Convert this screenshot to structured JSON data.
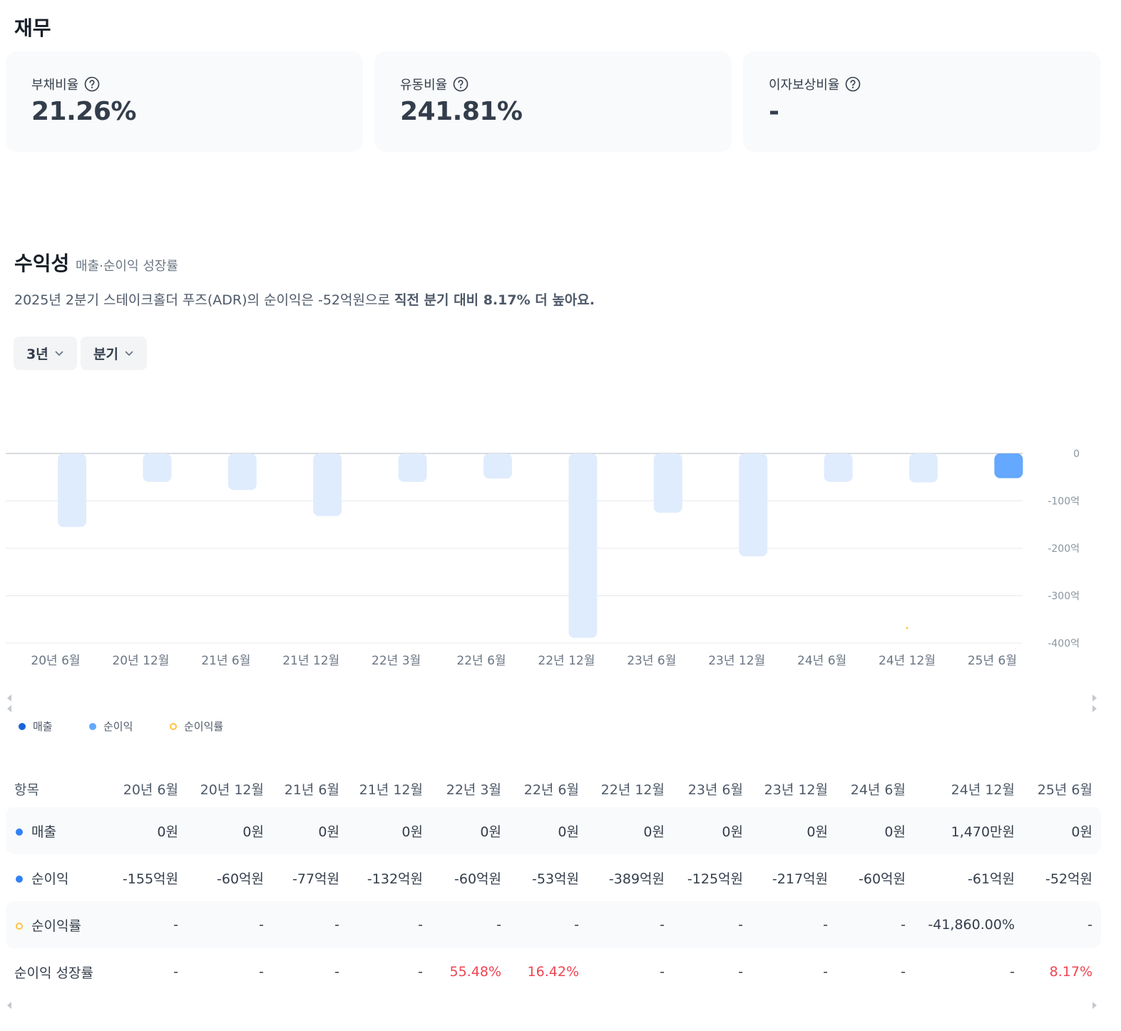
{
  "header": {
    "title": "재무"
  },
  "metrics": [
    {
      "label": "부채비율",
      "value": "21.26%"
    },
    {
      "label": "유동비율",
      "value": "241.81%"
    },
    {
      "label": "이자보상비율",
      "value": "-"
    }
  ],
  "profitability": {
    "title": "수익성",
    "subtitle": "매출·순이익 성장률",
    "summary": "2025년 2분기 스테이크홀더 푸즈(ADR)의 순이익은 -52억원으로 ",
    "summary_emphasis": "직전 분기 대비 8.17% 더 높아요."
  },
  "filters": [
    "3년",
    "분기"
  ],
  "chart_data": {
    "type": "bar",
    "categories": [
      "20년 6월",
      "20년 12월",
      "21년 6월",
      "21년 12월",
      "22년 3월",
      "22년 6월",
      "22년 12월",
      "23년 6월",
      "23년 12월",
      "24년 6월",
      "24년 12월",
      "25년 6월"
    ],
    "series": [
      {
        "name": "매출",
        "color": "#1b64da",
        "values": [
          0,
          0,
          0,
          0,
          0,
          0,
          0,
          0,
          0,
          0,
          0.147,
          0
        ]
      },
      {
        "name": "순이익",
        "color": "#64a8ff",
        "values": [
          -155,
          -60,
          -77,
          -132,
          -60,
          -53,
          -389,
          -125,
          -217,
          -60,
          -61,
          -52
        ]
      },
      {
        "name": "순이익률",
        "color": "#ffc342",
        "axis": "y2",
        "values": [
          null,
          null,
          null,
          null,
          null,
          null,
          null,
          null,
          null,
          null,
          -41860,
          null
        ]
      }
    ],
    "ylim": [
      -400,
      0
    ],
    "yticks": [
      0,
      {
        "value": -100,
        "label": "-100억"
      },
      {
        "value": -200,
        "label": "-200억"
      },
      {
        "value": -300,
        "label": "-300억"
      },
      {
        "value": -400,
        "label": "-400억"
      }
    ],
    "y2lim": [
      -45500,
      0
    ],
    "grid": true
  },
  "table": {
    "columns": [
      "항목",
      "20년 6월",
      "20년 12월",
      "21년 6월",
      "21년 12월",
      "22년 3월",
      "22년 6월",
      "22년 12월",
      "23년 6월",
      "23년 12월",
      "24년 6월",
      "24년 12월",
      "25년 6월"
    ],
    "rows": [
      {
        "label": "매출",
        "cells": [
          "0원",
          "0원",
          "0원",
          "0원",
          "0원",
          "0원",
          "0원",
          "0원",
          "0원",
          "0원",
          "1,470만원",
          "0원"
        ]
      },
      {
        "label": "순이익",
        "cells": [
          "-155억원",
          "-60억원",
          "-77억원",
          "-132억원",
          "-60억원",
          "-53억원",
          "-389억원",
          "-125억원",
          "-217억원",
          "-60억원",
          "-61억원",
          "-52억원"
        ]
      },
      {
        "label": "순이익률",
        "cells": [
          "-",
          "-",
          "-",
          "-",
          "-",
          "-",
          "-",
          "-",
          "-",
          "-",
          "-41,860.00%",
          "-"
        ]
      },
      {
        "label": "순이익 성장률",
        "highlight_color": "#f04452",
        "cells": [
          "-",
          "-",
          "-",
          "-",
          "55.48%",
          "16.42%",
          "-",
          "-",
          "-",
          "-",
          "-",
          "8.17%"
        ]
      }
    ]
  }
}
